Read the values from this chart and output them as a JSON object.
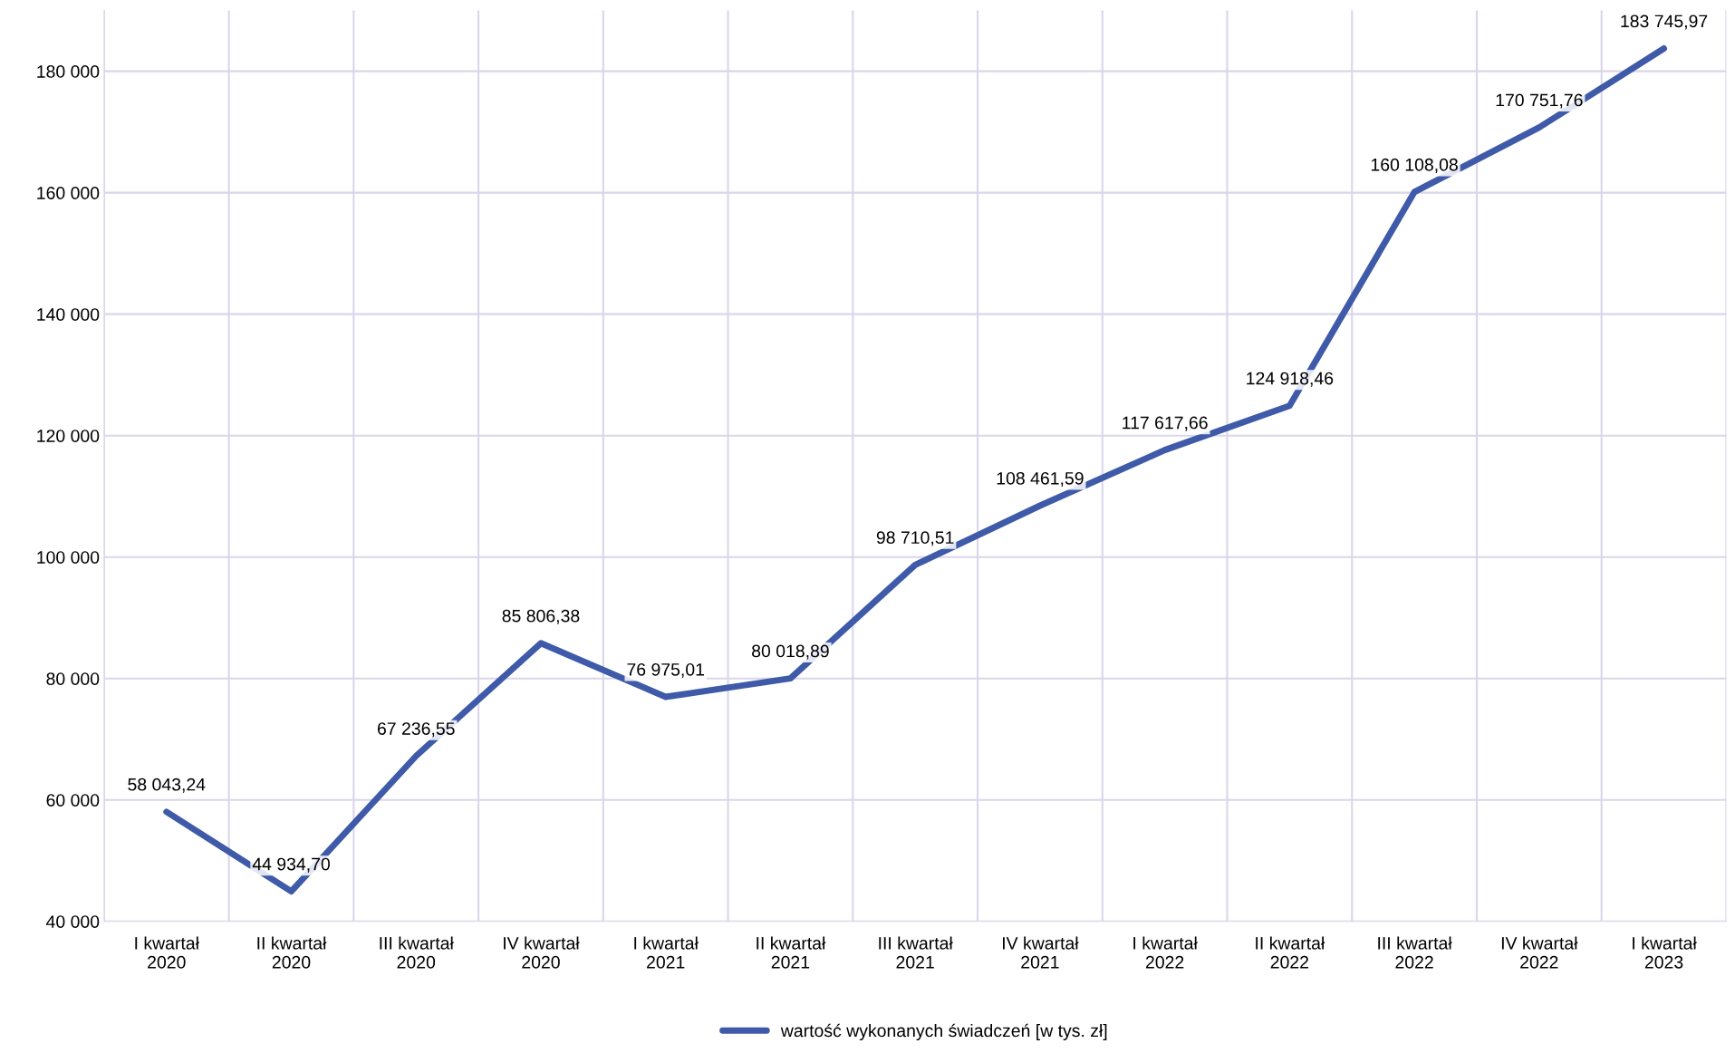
{
  "chart_data": {
    "type": "line",
    "categories": [
      "I kwartał\n2020",
      "II kwartał\n2020",
      "III kwartał\n2020",
      "IV kwartał\n2020",
      "I kwartał\n2021",
      "II kwartał\n2021",
      "III kwartał\n2021",
      "IV kwartał\n2021",
      "I kwartał\n2022",
      "II kwartał\n2022",
      "III kwartał\n2022",
      "IV kwartał\n2022",
      "I kwartał\n2023"
    ],
    "series": [
      {
        "name": "wartość wykonanych świadczeń [w tys. zł]",
        "color": "#3f5aa8",
        "values": [
          58043.24,
          44934.7,
          67236.55,
          85806.38,
          76975.01,
          80018.89,
          98710.51,
          108461.59,
          117617.66,
          124918.46,
          160108.08,
          170751.76,
          183745.97
        ],
        "value_labels": [
          "58 043,24",
          "44 934,70",
          "67 236,55",
          "85 806,38",
          "76 975,01",
          "80 018,89",
          "98 710,51",
          "108 461,59",
          "117 617,66",
          "124 918,46",
          "160 108,08",
          "170 751,76",
          "183 745,97"
        ]
      }
    ],
    "ylim": [
      40000,
      190000
    ],
    "yticks": [
      {
        "value": 40000,
        "label": "40 000"
      },
      {
        "value": 60000,
        "label": "60 000"
      },
      {
        "value": 80000,
        "label": "80 000"
      },
      {
        "value": 100000,
        "label": "100 000"
      },
      {
        "value": 120000,
        "label": "120 000"
      },
      {
        "value": 140000,
        "label": "140 000"
      },
      {
        "value": 160000,
        "label": "160 000"
      },
      {
        "value": 180000,
        "label": "180 000"
      }
    ],
    "grid": true,
    "legend": "bottom",
    "marker": "none",
    "line_style": "solid"
  }
}
